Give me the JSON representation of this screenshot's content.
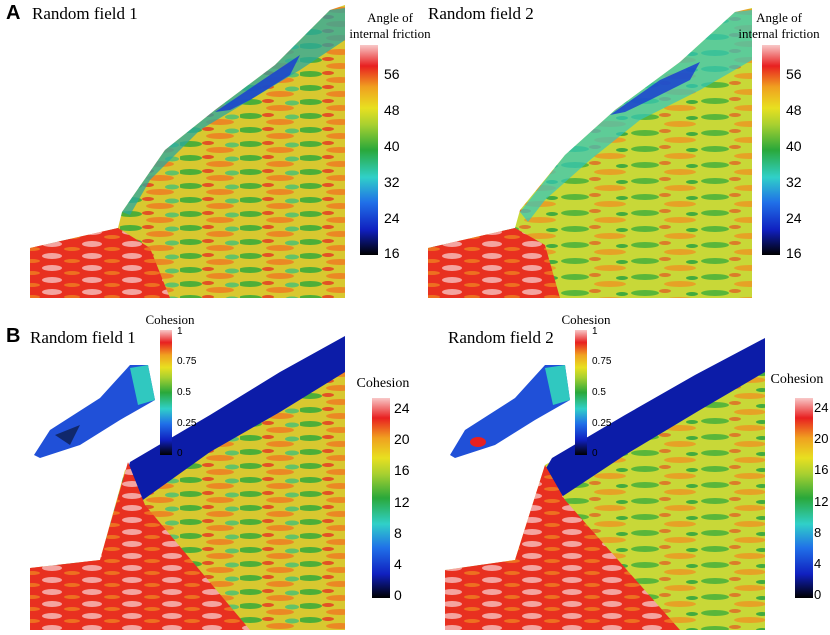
{
  "panels": [
    {
      "letter": "A",
      "fields": [
        {
          "title": "Random field 1",
          "colorbar": {
            "title_line1": "Angle of",
            "title_line2": "internal friction",
            "ticks": [
              "56",
              "48",
              "40",
              "32",
              "24",
              "16"
            ]
          }
        },
        {
          "title": "Random field 2",
          "colorbar": {
            "title_line1": "Angle of",
            "title_line2": "internal friction",
            "ticks": [
              "56",
              "48",
              "40",
              "32",
              "24",
              "16"
            ]
          }
        }
      ]
    },
    {
      "letter": "B",
      "fields": [
        {
          "title": "Random field 1",
          "inset_colorbar": {
            "title": "Cohesion",
            "ticks": [
              "1",
              "0.75",
              "0.5",
              "0.25",
              "0"
            ]
          },
          "colorbar": {
            "title": "Cohesion",
            "ticks": [
              "24",
              "20",
              "16",
              "12",
              "8",
              "4",
              "0"
            ]
          }
        },
        {
          "title": "Random field 2",
          "inset_colorbar": {
            "title": "Cohesion",
            "ticks": [
              "1",
              "0.75",
              "0.5",
              "0.25",
              "0"
            ]
          },
          "colorbar": {
            "title": "Cohesion",
            "ticks": [
              "24",
              "20",
              "16",
              "12",
              "8",
              "4",
              "0"
            ]
          }
        }
      ]
    }
  ],
  "colors": {
    "low": "#000000",
    "blue": "#1030d0",
    "cyan": "#30d0c8",
    "green": "#2aa83a",
    "yellow": "#e8e020",
    "orange": "#f0a020",
    "red": "#e82020",
    "pink": "#f8c8c8"
  }
}
